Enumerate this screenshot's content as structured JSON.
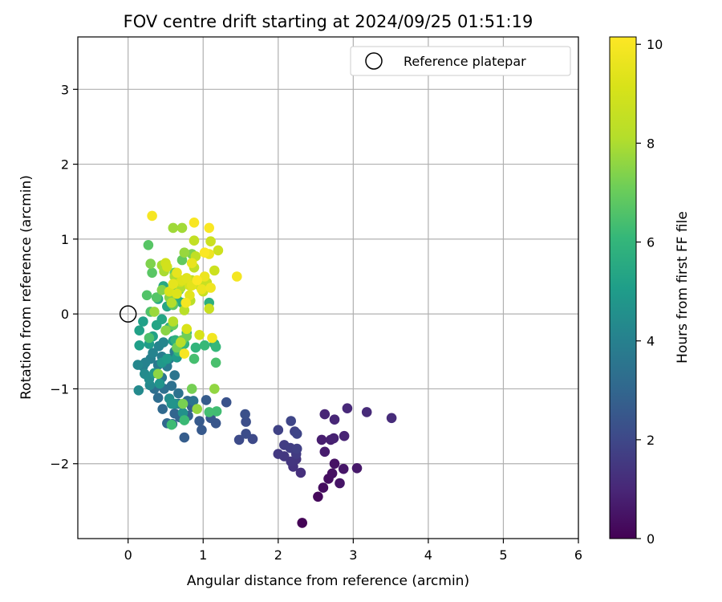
{
  "chart_data": {
    "type": "scatter",
    "title": "FOV centre drift starting at 2024/09/25 01:51:19",
    "xlabel": "Angular distance from reference (arcmin)",
    "ylabel": "Rotation from reference (arcmin)",
    "xlim": [
      -0.67,
      6.0
    ],
    "ylim": [
      -3.0,
      3.7
    ],
    "xticks": [
      0,
      1,
      2,
      3,
      4,
      5,
      6
    ],
    "yticks": [
      -2,
      -1,
      0,
      1,
      2,
      3
    ],
    "tick_labels_x": [
      "0",
      "1",
      "2",
      "3",
      "4",
      "5",
      "6"
    ],
    "tick_labels_y": [
      "−2",
      "−1",
      "0",
      "1",
      "2",
      "3"
    ],
    "grid": true,
    "legend": {
      "placement": "top-right",
      "entries": [
        "Reference platepar"
      ]
    },
    "reference_point": {
      "x": 0,
      "y": 0,
      "label": "Reference platepar"
    },
    "colorbar": {
      "label": "Hours from first FF file",
      "range": [
        0,
        10.15
      ],
      "ticks": [
        0,
        2,
        4,
        6,
        8,
        10
      ],
      "colormap": "viridis"
    },
    "points": [
      [
        2.32,
        -2.79,
        0.05
      ],
      [
        2.53,
        -2.44,
        0.2
      ],
      [
        2.6,
        -2.32,
        0.3
      ],
      [
        2.67,
        -2.2,
        0.35
      ],
      [
        2.72,
        -2.13,
        0.4
      ],
      [
        2.82,
        -2.26,
        0.5
      ],
      [
        2.75,
        -2.0,
        0.45
      ],
      [
        2.87,
        -2.07,
        0.55
      ],
      [
        3.05,
        -2.06,
        0.6
      ],
      [
        2.62,
        -1.84,
        0.7
      ],
      [
        2.58,
        -1.68,
        0.75
      ],
      [
        2.7,
        -1.68,
        0.8
      ],
      [
        2.74,
        -1.66,
        0.85
      ],
      [
        2.88,
        -1.63,
        0.9
      ],
      [
        2.62,
        -1.34,
        0.95
      ],
      [
        2.75,
        -1.41,
        1.0
      ],
      [
        2.92,
        -1.26,
        1.05
      ],
      [
        3.18,
        -1.31,
        1.1
      ],
      [
        3.51,
        -1.39,
        1.15
      ],
      [
        2.3,
        -2.12,
        1.25
      ],
      [
        2.2,
        -2.04,
        1.35
      ],
      [
        2.24,
        -1.94,
        1.4
      ],
      [
        2.17,
        -1.97,
        1.45
      ],
      [
        2.08,
        -1.9,
        1.5
      ],
      [
        2.0,
        -1.87,
        1.55
      ],
      [
        2.24,
        -1.87,
        1.6
      ],
      [
        2.08,
        -1.75,
        1.65
      ],
      [
        2.16,
        -1.79,
        1.7
      ],
      [
        2.25,
        -1.8,
        1.75
      ],
      [
        2.0,
        -1.55,
        1.8
      ],
      [
        2.22,
        -1.57,
        1.85
      ],
      [
        2.25,
        -1.6,
        1.9
      ],
      [
        2.17,
        -1.43,
        1.95
      ],
      [
        1.66,
        -1.67,
        2.05
      ],
      [
        1.48,
        -1.68,
        2.1
      ],
      [
        1.57,
        -1.6,
        2.15
      ],
      [
        1.57,
        -1.44,
        2.2
      ],
      [
        1.56,
        -1.34,
        2.25
      ],
      [
        1.31,
        -1.18,
        2.35
      ],
      [
        1.17,
        -1.46,
        2.45
      ],
      [
        1.1,
        -1.39,
        2.5
      ],
      [
        0.98,
        -1.55,
        2.55
      ],
      [
        0.95,
        -1.43,
        2.6
      ],
      [
        0.75,
        -1.65,
        2.7
      ],
      [
        1.04,
        -1.15,
        2.65
      ],
      [
        0.85,
        -1.24,
        2.75
      ],
      [
        0.8,
        -1.36,
        2.8
      ],
      [
        0.69,
        -1.38,
        2.9
      ],
      [
        0.62,
        -1.33,
        2.95
      ],
      [
        0.59,
        -1.47,
        3.0
      ],
      [
        0.52,
        -1.46,
        3.05
      ],
      [
        0.46,
        -1.27,
        3.1
      ],
      [
        0.79,
        -1.16,
        3.15
      ],
      [
        0.67,
        -1.2,
        3.2
      ],
      [
        0.4,
        -1.12,
        3.25
      ],
      [
        0.35,
        -1.0,
        3.3
      ],
      [
        0.48,
        -1.0,
        3.35
      ],
      [
        0.58,
        -0.96,
        3.4
      ],
      [
        0.67,
        -1.06,
        3.45
      ],
      [
        0.87,
        -1.16,
        3.5
      ],
      [
        0.62,
        -0.82,
        3.55
      ],
      [
        0.45,
        -0.85,
        3.6
      ],
      [
        0.52,
        -0.7,
        3.7
      ],
      [
        0.4,
        -0.68,
        3.75
      ],
      [
        0.55,
        -0.6,
        3.8
      ],
      [
        0.45,
        -0.57,
        3.85
      ],
      [
        0.62,
        -0.5,
        3.9
      ],
      [
        0.3,
        -0.6,
        3.95
      ],
      [
        0.2,
        -0.7,
        4.0
      ],
      [
        0.23,
        -0.65,
        4.05
      ],
      [
        0.33,
        -0.52,
        4.1
      ],
      [
        0.41,
        -0.43,
        4.15
      ],
      [
        0.47,
        -0.38,
        4.2
      ],
      [
        0.13,
        -0.68,
        4.25
      ],
      [
        0.29,
        -0.95,
        4.3
      ],
      [
        0.14,
        -1.02,
        4.35
      ],
      [
        0.22,
        -0.8,
        4.4
      ],
      [
        0.28,
        -0.87,
        4.45
      ],
      [
        0.55,
        -1.13,
        4.5
      ],
      [
        0.63,
        -1.2,
        4.55
      ],
      [
        0.73,
        -1.32,
        4.6
      ],
      [
        0.58,
        -1.2,
        4.7
      ],
      [
        0.42,
        -0.93,
        4.75
      ],
      [
        0.35,
        -0.79,
        4.8
      ],
      [
        0.45,
        -0.65,
        4.85
      ],
      [
        0.6,
        -0.36,
        4.9
      ],
      [
        0.65,
        -0.58,
        4.95
      ],
      [
        0.52,
        -0.6,
        5.0
      ],
      [
        0.28,
        -0.4,
        5.05
      ],
      [
        0.15,
        -0.42,
        5.1
      ],
      [
        0.2,
        -0.1,
        5.15
      ],
      [
        0.15,
        -0.22,
        5.2
      ],
      [
        0.33,
        -0.3,
        5.25
      ],
      [
        0.38,
        -0.15,
        5.3
      ],
      [
        0.45,
        -0.07,
        5.35
      ],
      [
        0.52,
        0.1,
        5.4
      ],
      [
        0.4,
        0.2,
        5.45
      ],
      [
        0.47,
        0.37,
        5.5
      ],
      [
        0.58,
        0.28,
        5.55
      ],
      [
        0.65,
        0.2,
        5.6
      ],
      [
        0.72,
        0.15,
        5.65
      ],
      [
        1.15,
        -0.4,
        5.7
      ],
      [
        1.08,
        0.15,
        5.75
      ],
      [
        0.78,
        -0.25,
        5.8
      ],
      [
        0.63,
        -0.35,
        5.85
      ],
      [
        0.55,
        -0.18,
        5.9
      ],
      [
        0.9,
        -0.45,
        5.95
      ],
      [
        0.67,
        -0.5,
        6.0
      ],
      [
        0.75,
        -0.4,
        6.05
      ],
      [
        1.17,
        -0.44,
        6.1
      ],
      [
        1.02,
        -0.42,
        6.15
      ],
      [
        0.75,
        -1.42,
        6.2
      ],
      [
        0.58,
        -1.48,
        6.25
      ],
      [
        1.18,
        -1.3,
        6.3
      ],
      [
        1.08,
        -1.31,
        6.35
      ],
      [
        0.88,
        -0.6,
        6.4
      ],
      [
        1.17,
        -0.65,
        6.45
      ],
      [
        0.28,
        -0.32,
        6.5
      ],
      [
        0.3,
        0.03,
        6.55
      ],
      [
        0.25,
        0.25,
        6.6
      ],
      [
        0.38,
        0.22,
        6.65
      ],
      [
        0.27,
        0.92,
        6.7
      ],
      [
        0.32,
        0.55,
        6.75
      ],
      [
        0.6,
        0.12,
        6.8
      ],
      [
        0.68,
        0.32,
        6.85
      ],
      [
        0.72,
        0.72,
        6.9
      ],
      [
        0.62,
        0.55,
        6.95
      ],
      [
        0.6,
        -0.15,
        7.0
      ],
      [
        0.72,
        -0.35,
        7.05
      ],
      [
        0.78,
        -0.3,
        7.1
      ],
      [
        0.65,
        -0.45,
        7.15
      ],
      [
        0.85,
        -1.0,
        7.2
      ],
      [
        0.73,
        -1.2,
        7.25
      ],
      [
        0.85,
        0.8,
        7.3
      ],
      [
        0.3,
        0.67,
        7.35
      ],
      [
        0.45,
        0.32,
        7.4
      ],
      [
        0.55,
        0.22,
        7.45
      ],
      [
        0.5,
        -0.22,
        7.5
      ],
      [
        0.4,
        -0.8,
        7.55
      ],
      [
        1.15,
        -1.0,
        7.6
      ],
      [
        0.92,
        -1.27,
        7.65
      ],
      [
        0.75,
        0.82,
        7.7
      ],
      [
        0.35,
        0.03,
        7.75
      ],
      [
        0.6,
        1.15,
        7.8
      ],
      [
        0.72,
        1.15,
        7.85
      ],
      [
        0.45,
        0.65,
        7.9
      ],
      [
        0.48,
        0.57,
        7.95
      ],
      [
        0.62,
        0.5,
        8.0
      ],
      [
        0.7,
        0.35,
        8.05
      ],
      [
        0.58,
        0.15,
        8.1
      ],
      [
        0.6,
        -0.1,
        8.15
      ],
      [
        0.7,
        -0.38,
        8.2
      ],
      [
        0.75,
        0.05,
        8.25
      ],
      [
        0.83,
        0.18,
        8.3
      ],
      [
        0.85,
        0.45,
        8.35
      ],
      [
        0.88,
        0.62,
        8.4
      ],
      [
        0.9,
        0.77,
        8.45
      ],
      [
        0.88,
        0.98,
        8.5
      ],
      [
        0.95,
        0.38,
        8.55
      ],
      [
        1.0,
        0.3,
        8.6
      ],
      [
        1.05,
        0.42,
        8.65
      ],
      [
        1.08,
        0.07,
        8.7
      ],
      [
        1.1,
        0.97,
        8.75
      ],
      [
        1.15,
        0.58,
        8.8
      ],
      [
        1.2,
        0.85,
        8.85
      ],
      [
        0.5,
        0.68,
        8.9
      ],
      [
        0.52,
        0.63,
        8.95
      ],
      [
        0.7,
        0.43,
        9.0
      ],
      [
        0.82,
        0.38,
        9.05
      ],
      [
        0.95,
        -0.28,
        9.1
      ],
      [
        0.78,
        -0.2,
        9.15
      ],
      [
        0.55,
        0.3,
        9.2
      ],
      [
        0.65,
        0.27,
        9.25
      ],
      [
        0.72,
        0.45,
        9.3
      ],
      [
        0.78,
        0.48,
        9.35
      ],
      [
        0.85,
        0.38,
        9.4
      ],
      [
        0.82,
        0.25,
        9.45
      ],
      [
        0.6,
        0.4,
        9.5
      ],
      [
        0.65,
        0.55,
        9.55
      ],
      [
        0.85,
        0.68,
        9.6
      ],
      [
        0.98,
        0.33,
        9.65
      ],
      [
        1.02,
        0.5,
        9.7
      ],
      [
        1.08,
        0.8,
        9.75
      ],
      [
        1.1,
        0.35,
        9.8
      ],
      [
        1.12,
        -0.32,
        9.85
      ],
      [
        1.45,
        0.5,
        9.9
      ],
      [
        0.77,
        0.15,
        9.92
      ],
      [
        0.75,
        -0.53,
        9.95
      ],
      [
        0.32,
        1.31,
        9.97
      ],
      [
        0.88,
        1.22,
        10.0
      ],
      [
        1.08,
        1.15,
        10.05
      ],
      [
        1.02,
        0.82,
        10.08
      ],
      [
        0.92,
        0.45,
        10.1
      ]
    ]
  }
}
